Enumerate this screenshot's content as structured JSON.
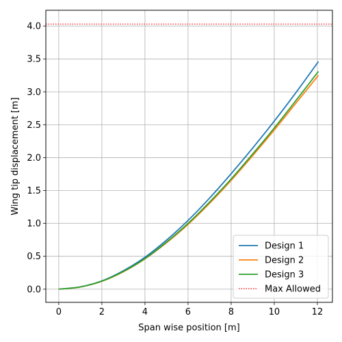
{
  "chart_data": {
    "type": "line",
    "title": "",
    "xlabel": "Span wise position [m]",
    "ylabel": "Wing tip displacement [m]",
    "xlim": [
      -0.6,
      12.7
    ],
    "ylim": [
      -0.2,
      4.24
    ],
    "xticks": [
      0,
      2,
      4,
      6,
      8,
      10,
      12
    ],
    "xtick_labels": [
      "0",
      "2",
      "4",
      "6",
      "8",
      "10",
      "12"
    ],
    "yticks": [
      0.0,
      0.5,
      1.0,
      1.5,
      2.0,
      2.5,
      3.0,
      3.5,
      4.0
    ],
    "ytick_labels": [
      "0.0",
      "0.5",
      "1.0",
      "1.5",
      "2.0",
      "2.5",
      "3.0",
      "3.5",
      "4.0"
    ],
    "grid": true,
    "legend_position": "lower-right",
    "series": [
      {
        "name": "Design 1",
        "color": "#1f77b4",
        "style": "solid",
        "x": [
          0,
          1,
          2,
          3,
          4,
          5,
          6,
          7,
          8,
          9,
          10,
          11,
          12.05
        ],
        "y": [
          0.0,
          0.035,
          0.125,
          0.28,
          0.485,
          0.745,
          1.045,
          1.385,
          1.755,
          2.145,
          2.555,
          2.985,
          3.46
        ]
      },
      {
        "name": "Design 2",
        "color": "#ff7f0e",
        "style": "solid",
        "x": [
          0,
          1,
          2,
          3,
          4,
          5,
          6,
          7,
          8,
          9,
          10,
          11,
          12.05
        ],
        "y": [
          0.0,
          0.033,
          0.12,
          0.265,
          0.46,
          0.705,
          0.985,
          1.305,
          1.655,
          2.03,
          2.42,
          2.825,
          3.25
        ]
      },
      {
        "name": "Design 3",
        "color": "#2ca02c",
        "style": "solid",
        "x": [
          0,
          1,
          2,
          3,
          4,
          5,
          6,
          7,
          8,
          9,
          10,
          11,
          12.05
        ],
        "y": [
          0.0,
          0.034,
          0.122,
          0.27,
          0.465,
          0.715,
          1.0,
          1.325,
          1.675,
          2.055,
          2.45,
          2.865,
          3.31
        ]
      },
      {
        "name": "Max Allowed",
        "color": "#ff0000",
        "style": "dotted",
        "constant_y": 4.03
      }
    ]
  }
}
